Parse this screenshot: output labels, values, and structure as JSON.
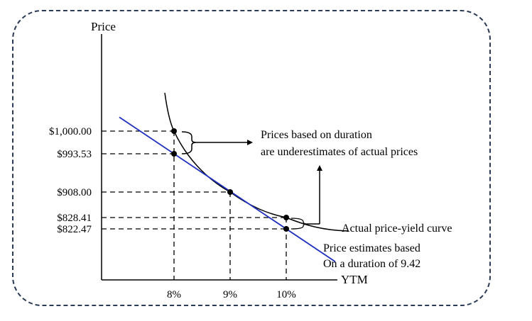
{
  "chart_data": {
    "type": "line",
    "x": [
      8,
      9,
      10
    ],
    "xlabel": "YTM",
    "ylabel": "Price",
    "x_tick_labels": [
      "8%",
      "9%",
      "10%"
    ],
    "y_tick_labels": [
      "$1,000.00",
      "$993.53",
      "$908.00",
      "$828.41",
      "$822.47"
    ],
    "y_tick_values": [
      1000.0,
      993.53,
      908.0,
      828.41,
      822.47
    ],
    "series": [
      {
        "name": "Actual price-yield curve",
        "color": "#000000",
        "points": [
          [
            8,
            1000.0
          ],
          [
            9,
            908.0
          ],
          [
            10,
            828.41
          ]
        ]
      },
      {
        "name": "Price estimates based",
        "color": "#1f2fbf",
        "points": [
          [
            8,
            993.53
          ],
          [
            9,
            908.0
          ],
          [
            10,
            822.47
          ]
        ]
      }
    ],
    "annotations": [
      {
        "line1": "Prices based on duration",
        "line2": "are underestimates of actual prices"
      },
      {
        "text": "Actual price-yield curve"
      },
      {
        "line1": "Price estimates based",
        "line2": "On a duration of 9.42"
      }
    ],
    "grid": false
  }
}
